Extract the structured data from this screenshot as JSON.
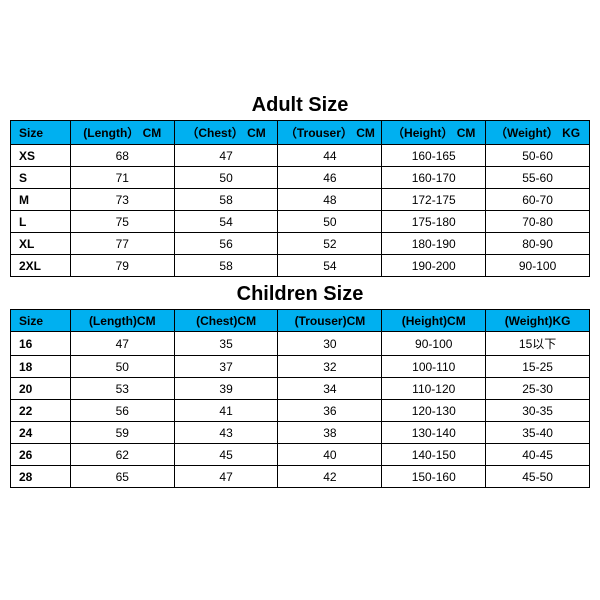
{
  "adult": {
    "title": "Adult Size",
    "columns": [
      "Size",
      "(Length） CM",
      "（Chest） CM",
      "（Trouser） CM",
      "（Height） CM",
      "（Weight） KG"
    ],
    "rows": [
      [
        "XS",
        "68",
        "47",
        "44",
        "160-165",
        "50-60"
      ],
      [
        "S",
        "71",
        "50",
        "46",
        "160-170",
        "55-60"
      ],
      [
        "M",
        "73",
        "58",
        "48",
        "172-175",
        "60-70"
      ],
      [
        "L",
        "75",
        "54",
        "50",
        "175-180",
        "70-80"
      ],
      [
        "XL",
        "77",
        "56",
        "52",
        "180-190",
        "80-90"
      ],
      [
        "2XL",
        "79",
        "58",
        "54",
        "190-200",
        "90-100"
      ]
    ],
    "col_widths": [
      "60px",
      "104px",
      "104px",
      "104px",
      "104px",
      "104px"
    ]
  },
  "children": {
    "title": "Children Size",
    "columns": [
      "Size",
      "(Length)CM",
      "(Chest)CM",
      "(Trouser)CM",
      "(Height)CM",
      "(Weight)KG"
    ],
    "rows": [
      [
        "16",
        "47",
        "35",
        "30",
        "90-100",
        "15以下"
      ],
      [
        "18",
        "50",
        "37",
        "32",
        "100-110",
        "15-25"
      ],
      [
        "20",
        "53",
        "39",
        "34",
        "110-120",
        "25-30"
      ],
      [
        "22",
        "56",
        "41",
        "36",
        "120-130",
        "30-35"
      ],
      [
        "24",
        "59",
        "43",
        "38",
        "130-140",
        "35-40"
      ],
      [
        "26",
        "62",
        "45",
        "40",
        "140-150",
        "40-45"
      ],
      [
        "28",
        "65",
        "47",
        "42",
        "150-160",
        "45-50"
      ]
    ],
    "col_widths": [
      "60px",
      "104px",
      "104px",
      "104px",
      "104px",
      "104px"
    ]
  },
  "style": {
    "header_bg": "#00b0f0",
    "border_color": "#000000",
    "title_fontsize": 20,
    "cell_fontsize": 12
  }
}
